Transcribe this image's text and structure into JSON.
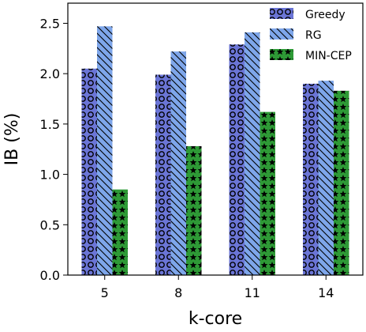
{
  "chart_data": {
    "type": "bar",
    "xlabel": "k-core",
    "ylabel": "IB (%)",
    "categories": [
      "5",
      "8",
      "11",
      "14"
    ],
    "ylim": [
      0,
      2.7
    ],
    "yticks": [
      "0.0",
      "0.5",
      "1.0",
      "1.5",
      "2.0",
      "2.5"
    ],
    "legend_position": "top-right",
    "series": [
      {
        "name": "Greedy",
        "values": [
          2.05,
          1.99,
          2.29,
          1.9
        ],
        "color": "#6b75d6",
        "hatch": "circles"
      },
      {
        "name": "RG",
        "values": [
          2.47,
          2.22,
          2.41,
          1.93
        ],
        "color": "#7ea6ea",
        "hatch": "diagonal"
      },
      {
        "name": "MIN-CEP",
        "values": [
          0.85,
          1.28,
          1.62,
          1.83
        ],
        "color": "#2e9a36",
        "hatch": "stars"
      }
    ]
  }
}
